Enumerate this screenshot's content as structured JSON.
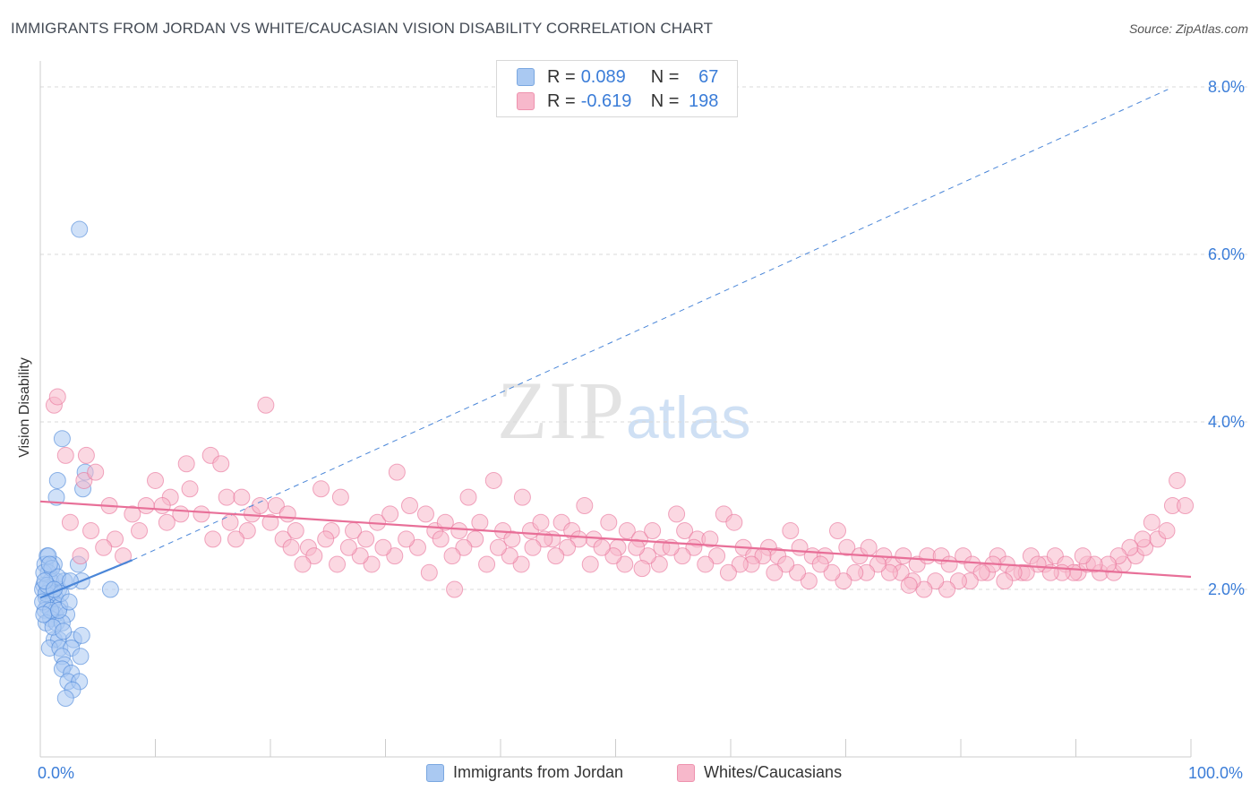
{
  "title": "IMMIGRANTS FROM JORDAN VS WHITE/CAUCASIAN VISION DISABILITY CORRELATION CHART",
  "source": "Source: ZipAtlas.com",
  "watermark": {
    "zip": "ZIP",
    "atlas": "atlas"
  },
  "legend_top": [
    {
      "r_label": "R =",
      "r_value": "0.089",
      "n_label": "N =",
      "n_value": "67",
      "color": "#aac9f2"
    },
    {
      "r_label": "R =",
      "r_value": "-0.619",
      "n_label": "N =",
      "n_value": "198",
      "color": "#f7b8cb"
    }
  ],
  "legend_bottom": [
    "Immigrants from Jordan",
    "Whites/Caucasians"
  ],
  "chart_data": {
    "type": "scatter",
    "title": "IMMIGRANTS FROM JORDAN VS WHITE/CAUCASIAN VISION DISABILITY CORRELATION CHART",
    "xlabel": "",
    "ylabel": "Vision Disability",
    "xlim": [
      0,
      100
    ],
    "ylim": [
      0,
      8.2
    ],
    "y_ticks": [
      {
        "v": 2,
        "label": "2.0%"
      },
      {
        "v": 4,
        "label": "4.0%"
      },
      {
        "v": 6,
        "label": "6.0%"
      },
      {
        "v": 8,
        "label": "8.0%"
      }
    ],
    "x_ticks": [
      {
        "v": 0,
        "label": "0.0%"
      },
      {
        "v": 100,
        "label": "100.0%"
      }
    ],
    "grid": "horizontal dashed",
    "series": [
      {
        "name": "Immigrants from Jordan",
        "color": "#4a86d8",
        "fill": "#aac9f2",
        "points": [
          [
            3.4,
            6.3
          ],
          [
            1.9,
            3.8
          ],
          [
            1.5,
            3.3
          ],
          [
            1.4,
            3.1
          ],
          [
            3.9,
            3.4
          ],
          [
            3.7,
            3.2
          ],
          [
            0.6,
            2.4
          ],
          [
            1.2,
            2.3
          ],
          [
            0.4,
            2.3
          ],
          [
            0.7,
            2.2
          ],
          [
            1.4,
            2.1
          ],
          [
            0.9,
            2.1
          ],
          [
            1.6,
            2.0
          ],
          [
            3.6,
            2.1
          ],
          [
            0.3,
            2.05
          ],
          [
            0.8,
            2.0
          ],
          [
            1.0,
            1.95
          ],
          [
            0.5,
            1.9
          ],
          [
            1.3,
            1.9
          ],
          [
            2.1,
            2.1
          ],
          [
            1.1,
            1.85
          ],
          [
            0.6,
            1.8
          ],
          [
            1.7,
            1.8
          ],
          [
            0.4,
            1.75
          ],
          [
            1.3,
            1.7
          ],
          [
            0.9,
            1.65
          ],
          [
            2.3,
            1.7
          ],
          [
            0.5,
            1.6
          ],
          [
            1.4,
            1.6
          ],
          [
            1.9,
            1.6
          ],
          [
            1.2,
            1.4
          ],
          [
            1.6,
            1.4
          ],
          [
            2.9,
            1.4
          ],
          [
            3.6,
            1.45
          ],
          [
            0.8,
            1.3
          ],
          [
            1.7,
            1.3
          ],
          [
            2.7,
            1.3
          ],
          [
            1.9,
            1.2
          ],
          [
            3.5,
            1.2
          ],
          [
            2.1,
            1.1
          ],
          [
            1.9,
            1.05
          ],
          [
            2.7,
            1.0
          ],
          [
            2.4,
            0.9
          ],
          [
            3.4,
            0.9
          ],
          [
            2.8,
            0.8
          ],
          [
            2.2,
            0.7
          ],
          [
            6.1,
            2.0
          ],
          [
            3.3,
            2.3
          ],
          [
            0.3,
            2.2
          ],
          [
            0.2,
            2.0
          ],
          [
            0.7,
            2.4
          ],
          [
            0.5,
            1.95
          ],
          [
            1.0,
            2.25
          ],
          [
            1.5,
            2.15
          ],
          [
            0.2,
            1.85
          ],
          [
            0.9,
            1.75
          ],
          [
            2.6,
            2.1
          ],
          [
            1.8,
            1.95
          ],
          [
            0.6,
            2.05
          ],
          [
            1.1,
            1.55
          ],
          [
            0.4,
            2.1
          ],
          [
            0.3,
            1.7
          ],
          [
            1.6,
            1.75
          ],
          [
            2.0,
            1.5
          ],
          [
            0.8,
            2.3
          ],
          [
            1.2,
            2.0
          ],
          [
            2.5,
            1.85
          ]
        ]
      },
      {
        "name": "Whites/Caucasians",
        "color": "#e86f98",
        "fill": "#f7b8cb",
        "points": [
          [
            1.2,
            4.2
          ],
          [
            1.5,
            4.3
          ],
          [
            19.6,
            4.2
          ],
          [
            2.2,
            3.6
          ],
          [
            3.8,
            3.3
          ],
          [
            4.0,
            3.6
          ],
          [
            4.8,
            3.4
          ],
          [
            10.0,
            3.3
          ],
          [
            11.3,
            3.1
          ],
          [
            12.7,
            3.5
          ],
          [
            14.8,
            3.6
          ],
          [
            15.7,
            3.5
          ],
          [
            20.5,
            3.0
          ],
          [
            16.2,
            3.1
          ],
          [
            17.5,
            3.1
          ],
          [
            18.4,
            2.9
          ],
          [
            19.1,
            3.0
          ],
          [
            21.1,
            2.6
          ],
          [
            22.2,
            2.7
          ],
          [
            23.3,
            2.5
          ],
          [
            24.4,
            3.2
          ],
          [
            25.3,
            2.7
          ],
          [
            26.1,
            3.1
          ],
          [
            27.2,
            2.7
          ],
          [
            28.3,
            2.6
          ],
          [
            29.3,
            2.8
          ],
          [
            30.4,
            2.9
          ],
          [
            31.0,
            3.4
          ],
          [
            32.1,
            3.0
          ],
          [
            33.5,
            2.9
          ],
          [
            34.3,
            2.7
          ],
          [
            35.2,
            2.8
          ],
          [
            36.4,
            2.7
          ],
          [
            37.2,
            3.1
          ],
          [
            38.2,
            2.8
          ],
          [
            39.4,
            3.3
          ],
          [
            40.2,
            2.7
          ],
          [
            41.0,
            2.6
          ],
          [
            41.9,
            3.1
          ],
          [
            42.6,
            2.7
          ],
          [
            43.5,
            2.8
          ],
          [
            44.5,
            2.6
          ],
          [
            45.3,
            2.8
          ],
          [
            46.2,
            2.7
          ],
          [
            47.3,
            3.0
          ],
          [
            48.1,
            2.6
          ],
          [
            49.4,
            2.8
          ],
          [
            50.2,
            2.5
          ],
          [
            51.0,
            2.7
          ],
          [
            52.1,
            2.6
          ],
          [
            53.2,
            2.7
          ],
          [
            54.0,
            2.5
          ],
          [
            55.3,
            2.9
          ],
          [
            56.0,
            2.7
          ],
          [
            57.1,
            2.6
          ],
          [
            58.2,
            2.6
          ],
          [
            59.4,
            2.9
          ],
          [
            60.3,
            2.8
          ],
          [
            61.1,
            2.5
          ],
          [
            62.0,
            2.4
          ],
          [
            63.3,
            2.5
          ],
          [
            64.1,
            2.4
          ],
          [
            65.2,
            2.7
          ],
          [
            66.0,
            2.5
          ],
          [
            67.1,
            2.4
          ],
          [
            68.2,
            2.4
          ],
          [
            69.3,
            2.7
          ],
          [
            70.1,
            2.5
          ],
          [
            71.2,
            2.4
          ],
          [
            72.0,
            2.5
          ],
          [
            73.3,
            2.4
          ],
          [
            74.1,
            2.3
          ],
          [
            75.0,
            2.4
          ],
          [
            76.2,
            2.3
          ],
          [
            77.1,
            2.4
          ],
          [
            78.3,
            2.4
          ],
          [
            79.0,
            2.3
          ],
          [
            80.2,
            2.4
          ],
          [
            81.0,
            2.3
          ],
          [
            82.3,
            2.2
          ],
          [
            83.2,
            2.4
          ],
          [
            84.0,
            2.3
          ],
          [
            85.3,
            2.2
          ],
          [
            86.1,
            2.4
          ],
          [
            87.3,
            2.3
          ],
          [
            88.2,
            2.4
          ],
          [
            89.1,
            2.3
          ],
          [
            90.2,
            2.2
          ],
          [
            91.0,
            2.3
          ],
          [
            92.1,
            2.2
          ],
          [
            93.3,
            2.2
          ],
          [
            94.1,
            2.3
          ],
          [
            95.2,
            2.4
          ],
          [
            96.0,
            2.5
          ],
          [
            97.1,
            2.6
          ],
          [
            97.9,
            2.7
          ],
          [
            98.4,
            3.0
          ],
          [
            98.8,
            3.3
          ],
          [
            99.5,
            3.0
          ],
          [
            96.6,
            2.8
          ],
          [
            95.8,
            2.6
          ],
          [
            94.7,
            2.5
          ],
          [
            93.7,
            2.4
          ],
          [
            92.8,
            2.3
          ],
          [
            91.6,
            2.3
          ],
          [
            90.6,
            2.4
          ],
          [
            89.8,
            2.2
          ],
          [
            88.8,
            2.2
          ],
          [
            87.8,
            2.2
          ],
          [
            86.7,
            2.3
          ],
          [
            85.7,
            2.2
          ],
          [
            84.6,
            2.2
          ],
          [
            83.8,
            2.1
          ],
          [
            82.8,
            2.3
          ],
          [
            81.8,
            2.2
          ],
          [
            80.8,
            2.1
          ],
          [
            79.8,
            2.1
          ],
          [
            78.8,
            2.0
          ],
          [
            77.8,
            2.1
          ],
          [
            76.8,
            2.0
          ],
          [
            75.8,
            2.1
          ],
          [
            74.8,
            2.2
          ],
          [
            73.8,
            2.2
          ],
          [
            72.8,
            2.3
          ],
          [
            71.8,
            2.2
          ],
          [
            70.8,
            2.2
          ],
          [
            69.8,
            2.1
          ],
          [
            68.8,
            2.2
          ],
          [
            67.8,
            2.3
          ],
          [
            66.8,
            2.1
          ],
          [
            65.8,
            2.2
          ],
          [
            64.8,
            2.3
          ],
          [
            63.8,
            2.2
          ],
          [
            62.8,
            2.4
          ],
          [
            61.8,
            2.3
          ],
          [
            60.8,
            2.3
          ],
          [
            59.8,
            2.2
          ],
          [
            58.8,
            2.4
          ],
          [
            57.8,
            2.3
          ],
          [
            56.8,
            2.5
          ],
          [
            55.8,
            2.4
          ],
          [
            54.8,
            2.5
          ],
          [
            53.8,
            2.3
          ],
          [
            52.8,
            2.4
          ],
          [
            51.8,
            2.5
          ],
          [
            50.8,
            2.3
          ],
          [
            49.8,
            2.4
          ],
          [
            48.8,
            2.5
          ],
          [
            47.8,
            2.3
          ],
          [
            46.8,
            2.6
          ],
          [
            45.8,
            2.5
          ],
          [
            44.8,
            2.4
          ],
          [
            43.8,
            2.6
          ],
          [
            42.8,
            2.5
          ],
          [
            41.8,
            2.3
          ],
          [
            40.8,
            2.4
          ],
          [
            39.8,
            2.5
          ],
          [
            38.8,
            2.3
          ],
          [
            37.8,
            2.6
          ],
          [
            36.8,
            2.5
          ],
          [
            35.8,
            2.4
          ],
          [
            34.8,
            2.6
          ],
          [
            33.8,
            2.2
          ],
          [
            32.8,
            2.5
          ],
          [
            31.8,
            2.6
          ],
          [
            30.8,
            2.4
          ],
          [
            29.8,
            2.5
          ],
          [
            28.8,
            2.3
          ],
          [
            27.8,
            2.4
          ],
          [
            26.8,
            2.5
          ],
          [
            25.8,
            2.3
          ],
          [
            24.8,
            2.6
          ],
          [
            23.8,
            2.4
          ],
          [
            22.8,
            2.3
          ],
          [
            21.8,
            2.5
          ],
          [
            21.5,
            2.9
          ],
          [
            20.0,
            2.8
          ],
          [
            18.0,
            2.7
          ],
          [
            17.0,
            2.6
          ],
          [
            16.5,
            2.8
          ],
          [
            15.0,
            2.6
          ],
          [
            14.0,
            2.9
          ],
          [
            13.0,
            3.2
          ],
          [
            12.2,
            2.9
          ],
          [
            11.0,
            2.8
          ],
          [
            9.2,
            3.0
          ],
          [
            8.0,
            2.9
          ],
          [
            6.5,
            2.6
          ],
          [
            5.5,
            2.5
          ],
          [
            4.4,
            2.7
          ],
          [
            3.5,
            2.4
          ],
          [
            2.6,
            2.8
          ],
          [
            6.0,
            3.0
          ],
          [
            7.2,
            2.4
          ],
          [
            8.6,
            2.7
          ],
          [
            10.6,
            3.0
          ],
          [
            36.0,
            2.0
          ],
          [
            75.5,
            2.05
          ],
          [
            52.3,
            2.25
          ]
        ]
      }
    ],
    "trend_lines": [
      {
        "series": "Immigrants from Jordan",
        "style": "solid",
        "x": [
          0,
          8
        ],
        "y": [
          1.9,
          2.35
        ]
      },
      {
        "series": "Immigrants from Jordan",
        "style": "dashed",
        "x": [
          8,
          98
        ],
        "y": [
          2.35,
          7.97
        ]
      },
      {
        "series": "Whites/Caucasians",
        "style": "solid",
        "x": [
          0,
          100
        ],
        "y": [
          3.05,
          2.15
        ]
      }
    ]
  }
}
